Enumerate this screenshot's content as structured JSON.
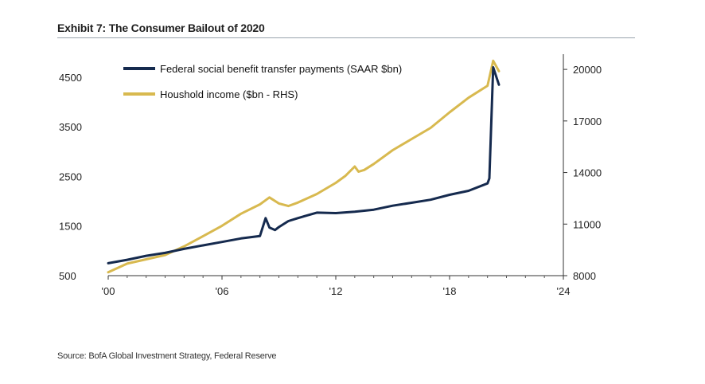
{
  "header": {
    "title": "Exhibit 7: The Consumer Bailout of 2020"
  },
  "footer": {
    "source": "Source: BofA Global Investment Strategy, Federal Reserve"
  },
  "chart_data": {
    "type": "line",
    "title": "Exhibit 7: The Consumer Bailout of 2020",
    "x_tick_labels": [
      "'00",
      "'06",
      "'12",
      "'18",
      "'24"
    ],
    "x_ticks": [
      2000,
      2006,
      2012,
      2018,
      2024
    ],
    "xlim": [
      2000,
      2024
    ],
    "y_left": {
      "ticks": [
        500,
        1500,
        2500,
        3500,
        4500
      ],
      "ylim": [
        500,
        4900
      ]
    },
    "y_right": {
      "ticks": [
        8000,
        11000,
        14000,
        17000,
        20000
      ],
      "ylim": [
        8000,
        20700
      ]
    },
    "legend_position": "top-left",
    "grid": false,
    "series": [
      {
        "name": "Federal social benefit transfer payments (SAAR $bn)",
        "axis": "left",
        "color": "#152a4e",
        "x": [
          2000,
          2001,
          2002,
          2003,
          2004,
          2005,
          2006,
          2007,
          2008,
          2008.3,
          2008.5,
          2008.8,
          2009,
          2009.5,
          2010,
          2011,
          2012,
          2013,
          2014,
          2015,
          2016,
          2017,
          2018,
          2019,
          2020,
          2020.1,
          2020.3,
          2020.6
        ],
        "values": [
          750,
          820,
          900,
          960,
          1040,
          1110,
          1180,
          1250,
          1300,
          1660,
          1470,
          1420,
          1480,
          1600,
          1660,
          1770,
          1760,
          1790,
          1830,
          1910,
          1970,
          2030,
          2130,
          2210,
          2360,
          2460,
          4700,
          4350
        ]
      },
      {
        "name": "Houshold income ($bn - RHS)",
        "axis": "right",
        "color": "#d8b94f",
        "x": [
          2000,
          2001,
          2002,
          2003,
          2004,
          2005,
          2006,
          2007,
          2008,
          2008.5,
          2009,
          2009.5,
          2010,
          2011,
          2012,
          2012.5,
          2013,
          2013.2,
          2013.5,
          2014,
          2015,
          2016,
          2017,
          2018,
          2019,
          2020,
          2020.3,
          2020.6
        ],
        "values": [
          8200,
          8700,
          8950,
          9200,
          9700,
          10300,
          10900,
          11600,
          12150,
          12550,
          12200,
          12050,
          12250,
          12750,
          13400,
          13800,
          14350,
          14050,
          14150,
          14500,
          15300,
          15950,
          16600,
          17500,
          18350,
          19050,
          20500,
          19900
        ]
      }
    ]
  }
}
